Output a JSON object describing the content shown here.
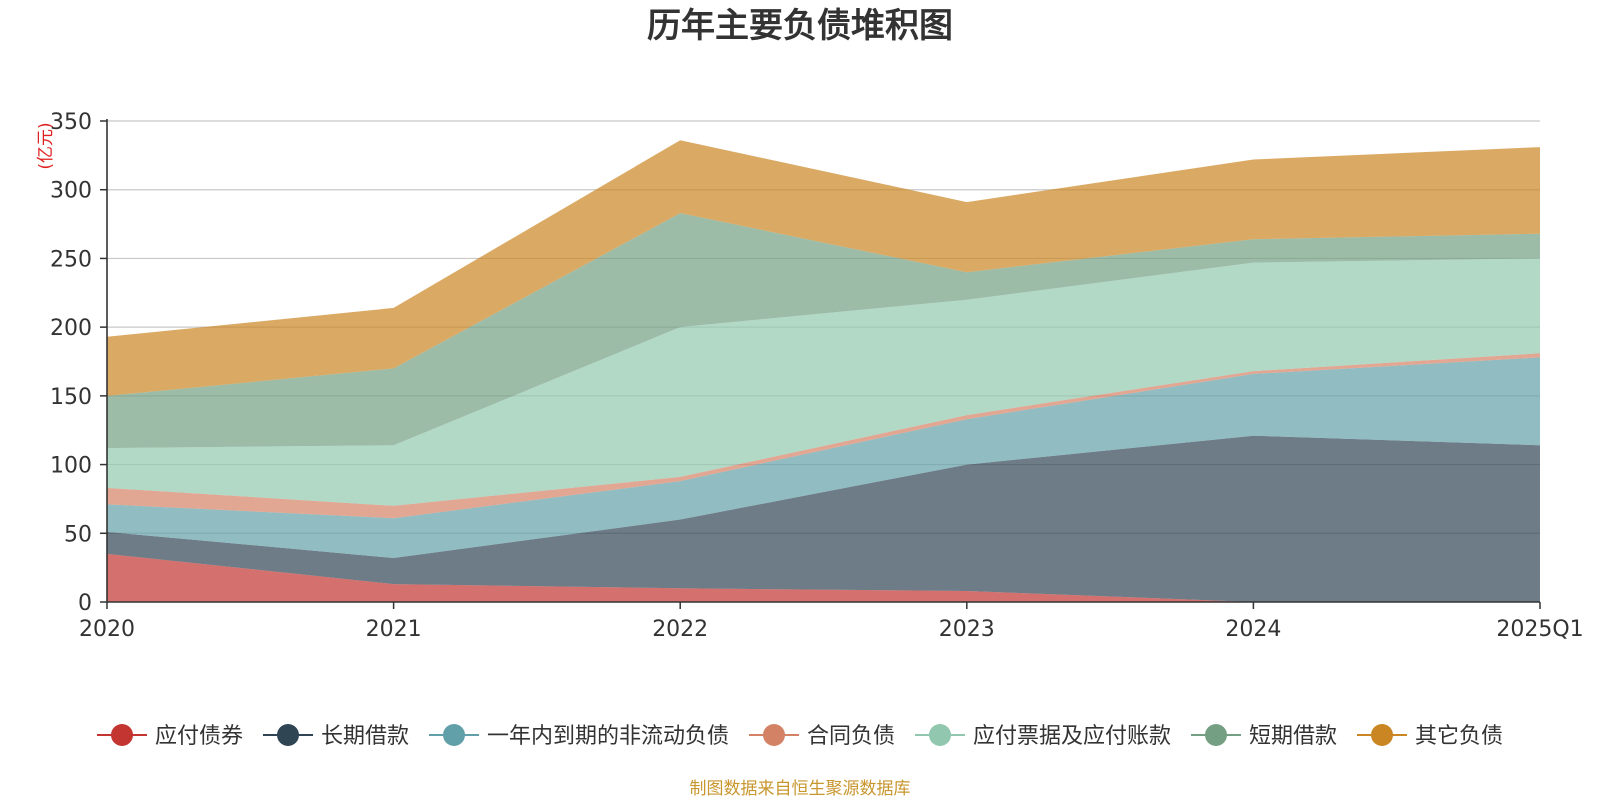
{
  "chart_data": {
    "type": "area",
    "stacked": true,
    "title": "历年主要负债堆积图",
    "unit_label": "(亿元)",
    "categories": [
      "2020",
      "2021",
      "2022",
      "2023",
      "2024",
      "2025Q1"
    ],
    "ylim": [
      0,
      350
    ],
    "yticks": [
      0,
      50,
      100,
      150,
      200,
      250,
      300,
      350
    ],
    "grid": true,
    "legend_position": "bottom",
    "series": [
      {
        "name": "应付债券",
        "color": "#c23531",
        "values": [
          35,
          13,
          10,
          8,
          0,
          0
        ]
      },
      {
        "name": "长期借款",
        "color": "#2f4554",
        "values": [
          16,
          19,
          50,
          92,
          121,
          114
        ]
      },
      {
        "name": "一年内到期的非流动负债",
        "color": "#61a0a8",
        "values": [
          20,
          29,
          28,
          33,
          45,
          64
        ]
      },
      {
        "name": "合同负债",
        "color": "#d48265",
        "values": [
          12,
          9,
          3,
          3,
          2,
          3
        ]
      },
      {
        "name": "应付票据及应付账款",
        "color": "#91c7ae",
        "values": [
          29,
          44,
          109,
          84,
          79,
          69
        ]
      },
      {
        "name": "短期借款",
        "color": "#749f83",
        "values": [
          38,
          56,
          83,
          20,
          17,
          18
        ]
      },
      {
        "name": "其它负债",
        "color": "#ca8622",
        "values": [
          43,
          44,
          53,
          51,
          58,
          63
        ]
      }
    ]
  },
  "footer": {
    "source": "制图数据来自恒生聚源数据库"
  }
}
